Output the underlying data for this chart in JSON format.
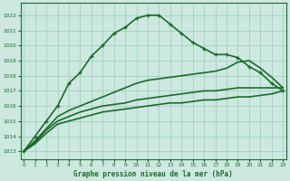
{
  "title": "Graphe pression niveau de la mer (hPa)",
  "background_color": "#cce8df",
  "grid_color": "#99ccbb",
  "line_color": "#1a6b2a",
  "x_ticks": [
    0,
    1,
    2,
    3,
    4,
    5,
    6,
    7,
    8,
    9,
    10,
    11,
    12,
    13,
    14,
    15,
    16,
    17,
    18,
    19,
    20,
    21,
    22,
    23
  ],
  "y_ticks": [
    1013,
    1014,
    1015,
    1016,
    1017,
    1018,
    1019,
    1020,
    1021,
    1022
  ],
  "ylim": [
    1012.5,
    1022.8
  ],
  "xlim": [
    -0.3,
    23.3
  ],
  "series": [
    {
      "x": [
        0,
        1,
        2,
        3,
        4,
        5,
        6,
        7,
        8,
        9,
        10,
        11,
        12,
        13,
        14,
        15,
        16,
        17,
        18,
        19,
        20,
        21,
        22,
        23
      ],
      "y": [
        1013.0,
        1013.5,
        1014.2,
        1014.8,
        1015.0,
        1015.2,
        1015.4,
        1015.6,
        1015.7,
        1015.8,
        1015.9,
        1016.0,
        1016.1,
        1016.2,
        1016.2,
        1016.3,
        1016.4,
        1016.4,
        1016.5,
        1016.6,
        1016.6,
        1016.7,
        1016.8,
        1017.0
      ],
      "marker": null,
      "linewidth": 1.2
    },
    {
      "x": [
        0,
        1,
        2,
        3,
        4,
        5,
        6,
        7,
        8,
        9,
        10,
        11,
        12,
        13,
        14,
        15,
        16,
        17,
        18,
        19,
        20,
        21,
        22,
        23
      ],
      "y": [
        1013.0,
        1013.6,
        1014.4,
        1015.0,
        1015.3,
        1015.6,
        1015.8,
        1016.0,
        1016.1,
        1016.2,
        1016.4,
        1016.5,
        1016.6,
        1016.7,
        1016.8,
        1016.9,
        1017.0,
        1017.0,
        1017.1,
        1017.2,
        1017.2,
        1017.2,
        1017.2,
        1017.2
      ],
      "marker": null,
      "linewidth": 1.2
    },
    {
      "x": [
        0,
        1,
        2,
        3,
        4,
        5,
        6,
        7,
        8,
        9,
        10,
        11,
        12,
        13,
        14,
        15,
        16,
        17,
        18,
        19,
        20,
        21,
        22,
        23
      ],
      "y": [
        1013.0,
        1013.7,
        1014.5,
        1015.3,
        1015.7,
        1016.0,
        1016.3,
        1016.6,
        1016.9,
        1017.2,
        1017.5,
        1017.7,
        1017.8,
        1017.9,
        1018.0,
        1018.1,
        1018.2,
        1018.3,
        1018.5,
        1018.9,
        1019.0,
        1018.5,
        1017.9,
        1017.2
      ],
      "marker": null,
      "linewidth": 1.2
    },
    {
      "x": [
        0,
        1,
        2,
        3,
        4,
        5,
        6,
        7,
        8,
        9,
        10,
        11,
        12,
        13,
        14,
        15,
        16,
        17,
        18,
        19,
        20,
        21,
        22,
        23
      ],
      "y": [
        1013.0,
        1014.0,
        1015.0,
        1016.0,
        1017.5,
        1018.2,
        1019.3,
        1020.0,
        1020.8,
        1021.2,
        1021.8,
        1022.0,
        1022.0,
        1021.4,
        1020.8,
        1020.2,
        1019.8,
        1019.4,
        1019.4,
        1019.2,
        1018.6,
        1018.2,
        1017.5,
        1017.0
      ],
      "marker": "+",
      "linewidth": 1.2
    }
  ]
}
